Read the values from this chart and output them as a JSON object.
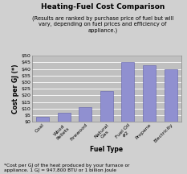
{
  "title": "Heating-Fuel Cost Comparison",
  "subtitle": "(Results are ranked by purchase price of fuel but will\nvary, depending on fuel prices and efficiency of\nappliance.)",
  "xlabel": "Fuel Type",
  "ylabel": "Cost per GJ (*)",
  "footnote": "*Cost per GJ of the heat produced by your furnace or\nappliance. 1 GJ = 947,800 BTU or 1 billion Joule",
  "categories": [
    "Coal",
    "Wood\nPellets",
    "Firewood",
    "Natural\nGas",
    "Fuel Oil\n#2",
    "Propane",
    "Electricity"
  ],
  "values": [
    3.5,
    7.0,
    11.0,
    23.5,
    45.5,
    42.5,
    40.0
  ],
  "bar_color": "#9090d0",
  "bar_edge_color": "#6060aa",
  "ylim": [
    0,
    50
  ],
  "yticks": [
    0,
    5,
    10,
    15,
    20,
    25,
    30,
    35,
    40,
    45,
    50
  ],
  "yticklabels": [
    "$0",
    "$5",
    "$10",
    "$15",
    "$20",
    "$25",
    "$30",
    "$35",
    "$40",
    "$45",
    "$50"
  ],
  "plot_bg": "#c0c0c0",
  "fig_bg": "#d0d0d0",
  "title_fontsize": 6.5,
  "subtitle_fontsize": 4.8,
  "axis_label_fontsize": 5.5,
  "tick_fontsize": 4.5,
  "footnote_fontsize": 4.2
}
